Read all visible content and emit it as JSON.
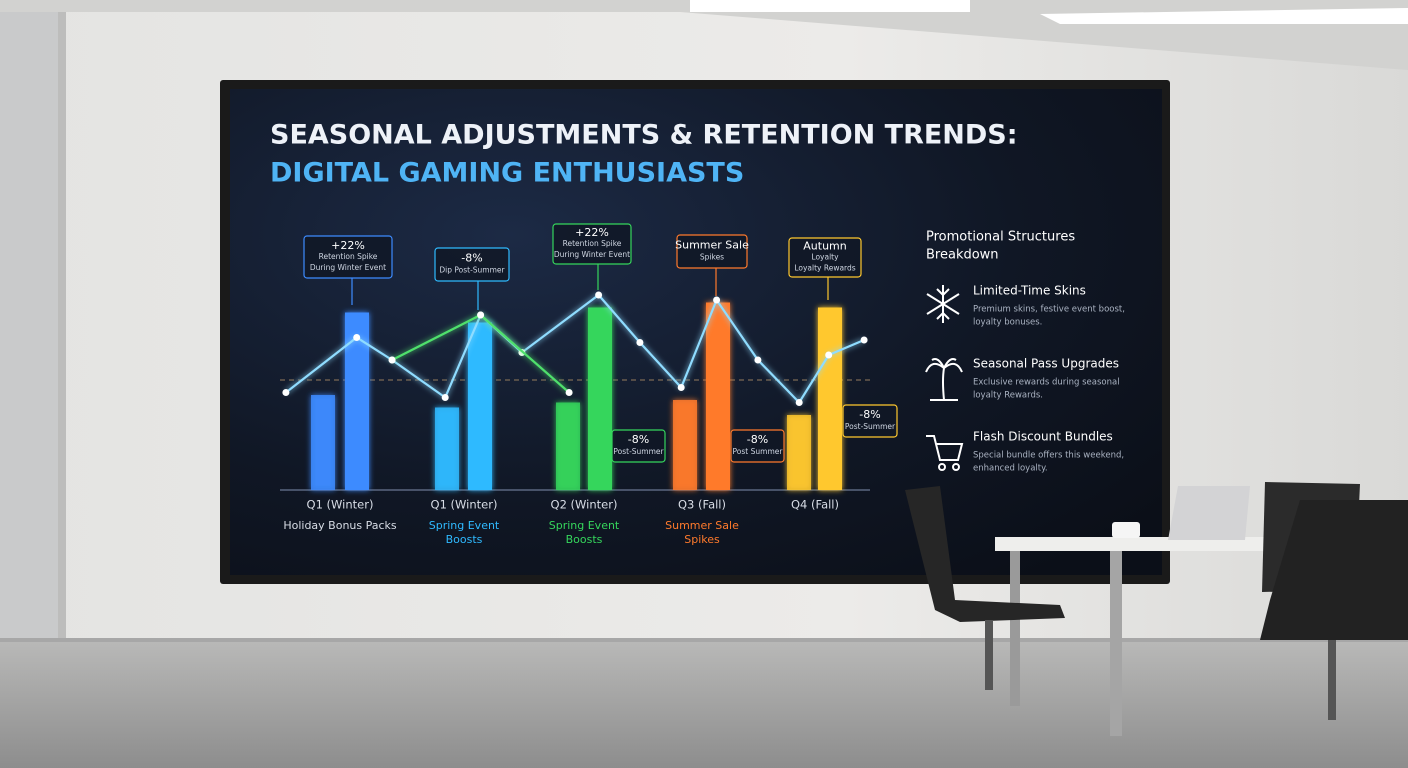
{
  "chart_data": {
    "type": "bar",
    "title": "SEASONAL ADJUSTMENTS & RETENTION TRENDS:",
    "subtitle": "DIGITAL GAMING ENTHUSIASTS",
    "categories": [
      "Q1 (Winter)",
      "Q1 (Winter)",
      "Q2 (Winter)",
      "Q3 (Fall)",
      "Q4 (Fall)"
    ],
    "category_notes": [
      [
        "Holiday Bonus Packs"
      ],
      [
        "Spring Event",
        "Boosts"
      ],
      [
        "Spring Event",
        "Boosts"
      ],
      [
        "Summer Sale",
        "Spikes"
      ],
      null
    ],
    "colors": [
      "#3d8bff",
      "#2fbaff",
      "#35d65c",
      "#ff7a2c",
      "#ffc82e"
    ],
    "series": [
      {
        "values": [
          38,
          33,
          35,
          36,
          30
        ]
      },
      {
        "values": [
          71,
          67,
          73,
          75,
          73
        ]
      }
    ],
    "lines": [
      {
        "color": "#8fdcff",
        "x": [
          1,
          13,
          19,
          28,
          34,
          41,
          54,
          61,
          68,
          74,
          81,
          88,
          93,
          99
        ],
        "values": [
          39,
          61,
          52,
          37,
          70,
          55,
          78,
          59,
          41,
          76,
          52,
          35,
          54,
          60
        ]
      },
      {
        "color": "#4fe06c",
        "x": [
          19,
          34,
          49
        ],
        "values": [
          52,
          70,
          39
        ]
      }
    ],
    "reference_line": 44,
    "xlim": [
      0,
      100
    ],
    "ylim": [
      0,
      100
    ],
    "callouts": [
      {
        "lines": [
          "+22%",
          "Retention Spike",
          "During Winter Event"
        ],
        "color": "#3d8bff"
      },
      {
        "lines": [
          "-8%",
          "Dip Post-Summer"
        ],
        "color": "#2fbaff"
      },
      {
        "lines": [
          "+22%",
          "Retention Spike",
          "During Winter Event"
        ],
        "color": "#35d65c"
      },
      {
        "lines": [
          "Summer Sale",
          "Spikes"
        ],
        "color": "#ff7a2c"
      },
      {
        "lines": [
          "Autumn",
          "Loyalty",
          "Loyalty Rewards"
        ],
        "color": "#ffc82e"
      },
      {
        "lines": [
          "-8%",
          "Post-Summer"
        ],
        "color": "#35d65c"
      },
      {
        "lines": [
          "-8%",
          "Post Summer"
        ],
        "color": "#ff7a2c"
      },
      {
        "lines": [
          "-8%",
          "Post-Summer"
        ],
        "color": "#ffc82e"
      }
    ],
    "sidebar": {
      "title": [
        "Promotional Structures",
        "Breakdown"
      ],
      "items": [
        {
          "title": "Limited-Time Skins",
          "text": [
            "Premium skins, festive event boost,",
            "loyalty bonuses."
          ]
        },
        {
          "title": "Seasonal Pass Upgrades",
          "text": [
            "Exclusive rewards during seasonal",
            "loyalty Rewards."
          ]
        },
        {
          "title": "Flash Discount Bundles",
          "text": [
            "Special bundle offers this weekend,",
            "enhanced loyalty."
          ]
        }
      ]
    }
  }
}
